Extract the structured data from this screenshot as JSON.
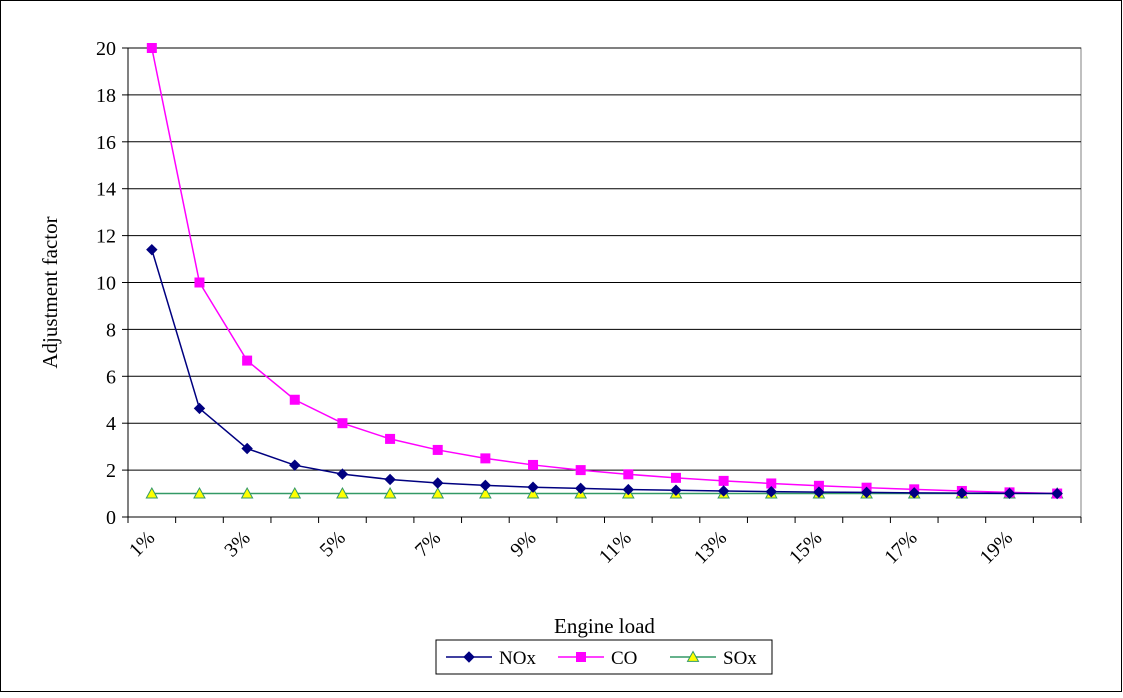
{
  "chart_data": {
    "type": "line",
    "title": "",
    "xlabel": "Engine load",
    "ylabel": "Adjustment factor",
    "ylim": [
      0,
      20
    ],
    "yticks": [
      0,
      2,
      4,
      6,
      8,
      10,
      12,
      14,
      16,
      18,
      20
    ],
    "grid": "horizontal",
    "legend_position": "bottom",
    "categories": [
      "1%",
      "2%",
      "3%",
      "4%",
      "5%",
      "6%",
      "7%",
      "8%",
      "9%",
      "10%",
      "11%",
      "12%",
      "13%",
      "14%",
      "15%",
      "16%",
      "17%",
      "18%",
      "19%",
      "20%"
    ],
    "x_tick_labels": [
      "1%",
      "3%",
      "5%",
      "7%",
      "9%",
      "11%",
      "13%",
      "15%",
      "17%",
      "19%"
    ],
    "series": [
      {
        "name": "NOx",
        "color": "#000080",
        "marker": "diamond",
        "values": [
          11.4,
          4.63,
          2.92,
          2.21,
          1.83,
          1.6,
          1.45,
          1.35,
          1.27,
          1.22,
          1.17,
          1.14,
          1.11,
          1.08,
          1.06,
          1.05,
          1.03,
          1.02,
          1.01,
          1.0
        ]
      },
      {
        "name": "CO",
        "color": "#FF00FF",
        "marker": "square",
        "values": [
          20.0,
          10.0,
          6.67,
          5.0,
          4.0,
          3.33,
          2.86,
          2.5,
          2.22,
          2.0,
          1.82,
          1.67,
          1.54,
          1.43,
          1.33,
          1.25,
          1.18,
          1.11,
          1.05,
          1.0
        ]
      },
      {
        "name": "SOx",
        "color": "#339966",
        "marker": "triangle",
        "marker_fill": "#FFFF00",
        "values": [
          1.0,
          1.0,
          1.0,
          1.0,
          1.0,
          1.0,
          1.0,
          1.0,
          1.0,
          1.0,
          1.0,
          1.0,
          1.0,
          1.0,
          1.0,
          1.0,
          1.0,
          1.0,
          1.0,
          1.0
        ]
      }
    ]
  }
}
